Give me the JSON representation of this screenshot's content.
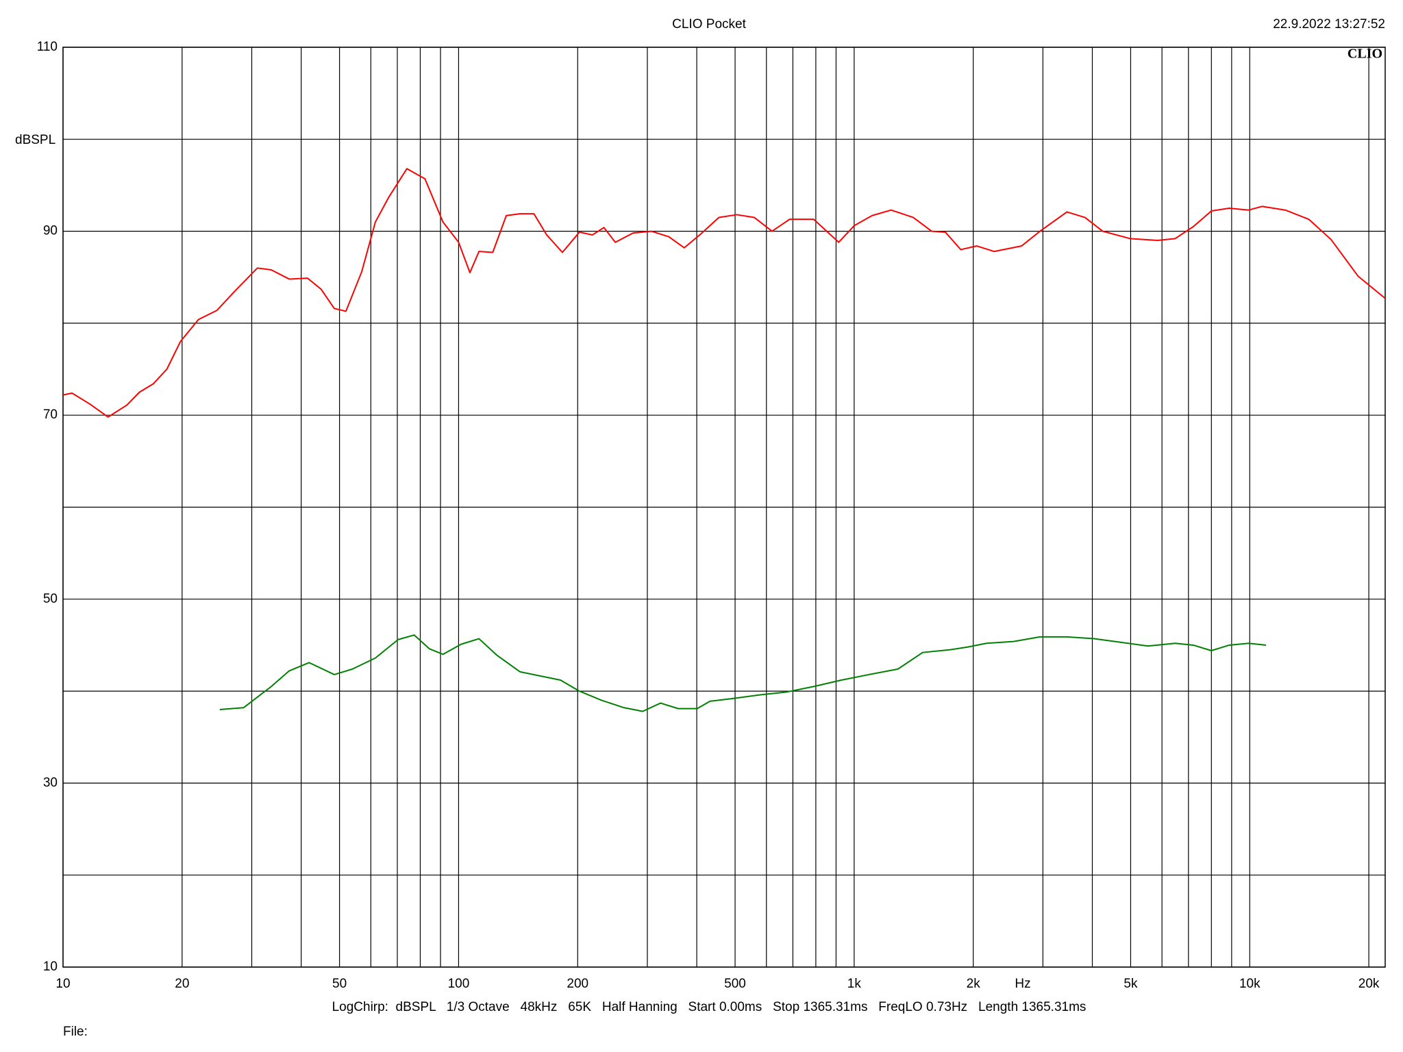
{
  "chart_data": {
    "type": "line",
    "title": "CLIO Pocket",
    "timestamp": "22.9.2022 13:27:52",
    "logo": "CLIO",
    "ylabel": "dBSPL",
    "xlabel": "Hz",
    "settings_line": "LogChirp:  dBSPL   1/3 Octave   48kHz   65K   Half Hanning   Start 0.00ms   Stop 1365.31ms   FreqLO 0.73Hz   Length 1365.31ms",
    "file_label": "File:",
    "xscale": "log",
    "grid": true,
    "xlim": [
      10,
      22000
    ],
    "ylim": [
      10,
      110
    ],
    "xticks": [
      10,
      20,
      50,
      100,
      200,
      500,
      {
        "value": 1000,
        "label": "1k"
      },
      {
        "value": 2000,
        "label": "2k"
      },
      {
        "value": 5000,
        "label": "5k"
      },
      {
        "value": 10000,
        "label": "10k"
      },
      {
        "value": 20000,
        "label": "20k"
      }
    ],
    "xgrid_minor": [
      30,
      40,
      60,
      70,
      80,
      90,
      300,
      400,
      600,
      700,
      800,
      900,
      3000,
      4000,
      6000,
      7000,
      8000,
      9000
    ],
    "yticks": [
      10,
      30,
      50,
      70,
      90,
      110
    ],
    "ygrid_minor": [
      20,
      40,
      60,
      80,
      100
    ],
    "series": [
      {
        "color": "#ff0000",
        "x": [
          10,
          10.54,
          11.7,
          13.0,
          14.5,
          15.6,
          16.9,
          18.3,
          19.8,
          22.0,
          24.5,
          27.2,
          31.0,
          33.6,
          37.3,
          41.5,
          44.9,
          48.5,
          51.9,
          56.9,
          61.6,
          66.6,
          74.0,
          82.2,
          91.3,
          100,
          106.8,
          112.6,
          122,
          132,
          143,
          155,
          167,
          183,
          202,
          218,
          233,
          249,
          276,
          307,
          340,
          372,
          412,
          455,
          505,
          559,
          620,
          687,
          790,
          914,
          1000,
          1110,
          1240,
          1410,
          1570,
          1700,
          1860,
          2040,
          2260,
          2650,
          2950,
          3450,
          3830,
          4250,
          4980,
          5850,
          6480,
          7200,
          8000,
          8870,
          9940,
          10750,
          12300,
          14100,
          16050,
          18800,
          22000
        ],
        "values": [
          72.2,
          72.4,
          71.2,
          69.8,
          71.1,
          72.5,
          73.4,
          75.0,
          78.0,
          80.4,
          81.4,
          83.5,
          86.0,
          85.8,
          84.8,
          84.9,
          83.7,
          81.6,
          81.3,
          85.6,
          91.0,
          93.7,
          96.8,
          95.7,
          91.0,
          88.8,
          85.5,
          87.8,
          87.7,
          91.7,
          91.9,
          91.9,
          89.6,
          87.7,
          89.9,
          89.6,
          90.4,
          88.8,
          89.8,
          90.0,
          89.4,
          88.2,
          89.8,
          91.5,
          91.8,
          91.5,
          90.0,
          91.3,
          91.3,
          88.8,
          90.6,
          91.7,
          92.3,
          91.5,
          90.0,
          89.9,
          88.0,
          88.4,
          87.8,
          88.4,
          90.0,
          92.1,
          91.5,
          90.0,
          89.2,
          89.0,
          89.2,
          90.5,
          92.2,
          92.5,
          92.3,
          92.7,
          92.3,
          91.3,
          89.1,
          85.1,
          82.7
        ]
      },
      {
        "color": "#008000",
        "x": [
          24.9,
          28.6,
          33.6,
          37.3,
          41.9,
          48.5,
          53.9,
          61.6,
          70.3,
          77.2,
          84.4,
          91.3,
          101.5,
          112.6,
          125,
          143,
          163,
          181,
          202,
          230,
          262,
          292,
          324,
          359,
          401,
          432,
          494,
          579,
          674,
          790,
          928,
          1090,
          1290,
          1490,
          1750,
          1940,
          2160,
          2530,
          2950,
          3450,
          4040,
          4730,
          5530,
          6480,
          7200,
          8000,
          8870,
          9940,
          11000
        ],
        "values": [
          38.0,
          38.2,
          40.5,
          42.2,
          43.1,
          41.8,
          42.4,
          43.6,
          45.6,
          46.1,
          44.6,
          44.0,
          45.1,
          45.7,
          43.9,
          42.1,
          41.6,
          41.2,
          40.0,
          39.0,
          38.2,
          37.8,
          38.7,
          38.1,
          38.1,
          38.9,
          39.2,
          39.6,
          39.9,
          40.5,
          41.2,
          41.8,
          42.4,
          44.2,
          44.5,
          44.8,
          45.2,
          45.4,
          45.9,
          45.9,
          45.7,
          45.3,
          44.9,
          45.2,
          45.0,
          44.4,
          45.0,
          45.2,
          45.0
        ]
      }
    ]
  }
}
